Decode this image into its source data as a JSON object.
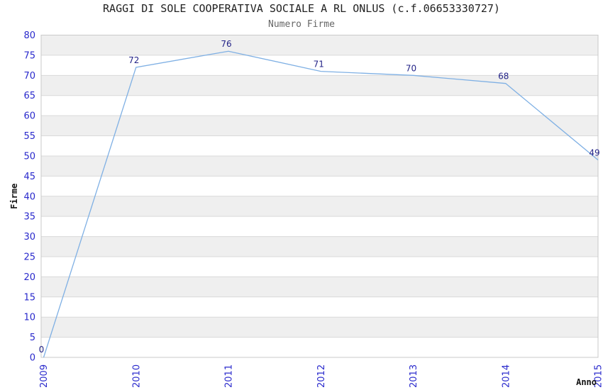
{
  "chart_data": {
    "type": "line",
    "title": "RAGGI DI SOLE COOPERATIVA SOCIALE A RL ONLUS (c.f.06653330727)",
    "subtitle": "Numero Firme",
    "xlabel": "Anno",
    "ylabel": "Firme",
    "categories": [
      "2009",
      "2010",
      "2011",
      "2012",
      "2013",
      "2014",
      "2015"
    ],
    "series": [
      {
        "name": "Numero Firme",
        "values": [
          0,
          72,
          76,
          71,
          70,
          68,
          49
        ]
      }
    ],
    "ylim": [
      0,
      80
    ],
    "ytick_step": 5,
    "show_data_labels": true,
    "grid": "horizontal, every 5 units, alternating shaded bands",
    "legend_position": "none",
    "colors": {
      "line": "#7fb0e4",
      "data_label": "#242488",
      "tick_label": "#2929cc",
      "title": "#222222",
      "subtitle": "#666666",
      "axis_title": "#111111",
      "band_shaded": "#efefef",
      "band_plain": "#ffffff",
      "gridline": "#d9d9d9",
      "plot_border": "#c9c9c9",
      "background": "#ffffff"
    }
  }
}
